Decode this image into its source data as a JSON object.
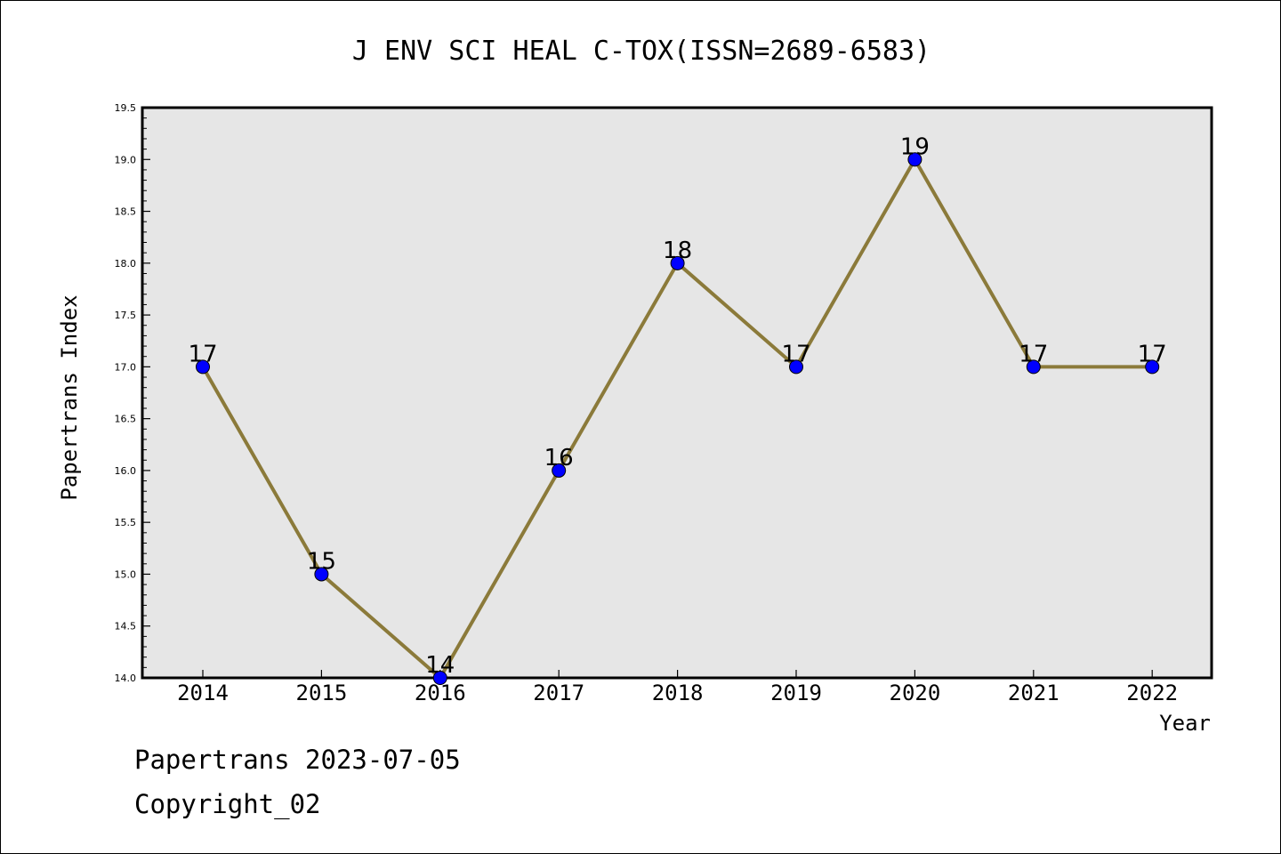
{
  "chart_data": {
    "type": "line",
    "title": "J ENV SCI HEAL C-TOX(ISSN=2689-6583)",
    "xlabel": "Year",
    "ylabel": "Papertrans Index",
    "categories": [
      "2014",
      "2015",
      "2016",
      "2017",
      "2018",
      "2019",
      "2020",
      "2021",
      "2022"
    ],
    "values": [
      17,
      15,
      14,
      16,
      18,
      17,
      19,
      17,
      17
    ],
    "data_labels": [
      "17",
      "15",
      "14",
      "16",
      "18",
      "17",
      "19",
      "17",
      "17"
    ],
    "ylim": [
      14.0,
      19.5
    ],
    "yticks": [
      "14.0",
      "14.5",
      "15.0",
      "15.5",
      "16.0",
      "16.5",
      "17.0",
      "17.5",
      "18.0",
      "18.5",
      "19.0",
      "19.5"
    ],
    "grid": false,
    "legend": "none",
    "colors": {
      "line": "#8b7a3a",
      "marker": "#0000ff",
      "plot_background": "#e6e6e6"
    }
  },
  "footer": {
    "line1": "Papertrans 2023-07-05",
    "line2": "Copyright_02"
  }
}
